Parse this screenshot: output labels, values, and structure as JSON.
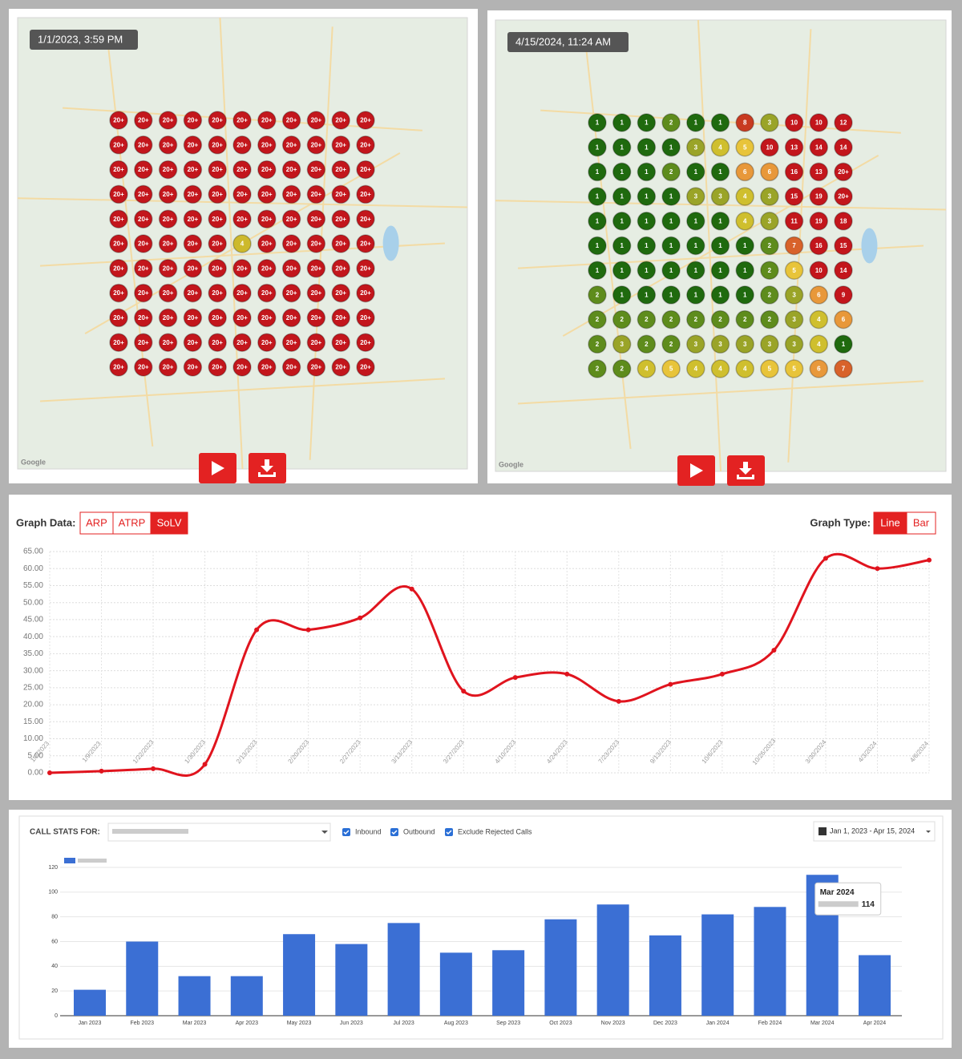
{
  "maps": [
    {
      "timestamp": "1/1/2023, 3:59 PM",
      "attribution": "Google",
      "label_colors": {
        "20+": "#c3161c",
        "4": "#cdb92c"
      },
      "grid": [
        [
          "20+",
          "20+",
          "20+",
          "20+",
          "20+",
          "20+",
          "20+",
          "20+",
          "20+",
          "20+",
          "20+"
        ],
        [
          "20+",
          "20+",
          "20+",
          "20+",
          "20+",
          "20+",
          "20+",
          "20+",
          "20+",
          "20+",
          "20+"
        ],
        [
          "20+",
          "20+",
          "20+",
          "20+",
          "20+",
          "20+",
          "20+",
          "20+",
          "20+",
          "20+",
          "20+"
        ],
        [
          "20+",
          "20+",
          "20+",
          "20+",
          "20+",
          "20+",
          "20+",
          "20+",
          "20+",
          "20+",
          "20+"
        ],
        [
          "20+",
          "20+",
          "20+",
          "20+",
          "20+",
          "20+",
          "20+",
          "20+",
          "20+",
          "20+",
          "20+"
        ],
        [
          "20+",
          "20+",
          "20+",
          "20+",
          "20+",
          "4",
          "20+",
          "20+",
          "20+",
          "20+",
          "20+"
        ],
        [
          "20+",
          "20+",
          "20+",
          "20+",
          "20+",
          "20+",
          "20+",
          "20+",
          "20+",
          "20+",
          "20+"
        ],
        [
          "20+",
          "20+",
          "20+",
          "20+",
          "20+",
          "20+",
          "20+",
          "20+",
          "20+",
          "20+",
          "20+"
        ],
        [
          "20+",
          "20+",
          "20+",
          "20+",
          "20+",
          "20+",
          "20+",
          "20+",
          "20+",
          "20+",
          "20+"
        ],
        [
          "20+",
          "20+",
          "20+",
          "20+",
          "20+",
          "20+",
          "20+",
          "20+",
          "20+",
          "20+",
          "20+"
        ],
        [
          "20+",
          "20+",
          "20+",
          "20+",
          "20+",
          "20+",
          "20+",
          "20+",
          "20+",
          "20+",
          "20+"
        ]
      ]
    },
    {
      "timestamp": "4/15/2024, 11:24 AM",
      "attribution": "Google",
      "label_colors": {
        "1": "#1f6a0e",
        "2": "#5e8c1c",
        "3": "#9aa428",
        "4": "#cfbf2e",
        "5": "#e8c43a",
        "6": "#e8983a",
        "7": "#d8622a",
        "8": "#c83a20",
        "9": "#c3161c",
        "10": "#c3161c",
        "11": "#c3161c",
        "12": "#c3161c",
        "13": "#c3161c",
        "14": "#c3161c",
        "15": "#c3161c",
        "16": "#c3161c",
        "18": "#c3161c",
        "19": "#c3161c",
        "20+": "#c3161c"
      },
      "grid": [
        [
          "1",
          "1",
          "1",
          "2",
          "1",
          "1",
          "8",
          "3",
          "10",
          "10",
          "12"
        ],
        [
          "1",
          "1",
          "1",
          "1",
          "3",
          "4",
          "5",
          "10",
          "13",
          "14",
          "14"
        ],
        [
          "1",
          "1",
          "1",
          "2",
          "1",
          "1",
          "6",
          "6",
          "16",
          "13",
          "20+"
        ],
        [
          "1",
          "1",
          "1",
          "1",
          "3",
          "3",
          "4",
          "3",
          "15",
          "19",
          "20+"
        ],
        [
          "1",
          "1",
          "1",
          "1",
          "1",
          "1",
          "4",
          "3",
          "11",
          "19",
          "18"
        ],
        [
          "1",
          "1",
          "1",
          "1",
          "1",
          "1",
          "1",
          "2",
          "7",
          "16",
          "15"
        ],
        [
          "1",
          "1",
          "1",
          "1",
          "1",
          "1",
          "1",
          "2",
          "5",
          "10",
          "14"
        ],
        [
          "2",
          "1",
          "1",
          "1",
          "1",
          "1",
          "1",
          "2",
          "3",
          "6",
          "9"
        ],
        [
          "2",
          "2",
          "2",
          "2",
          "2",
          "2",
          "2",
          "2",
          "3",
          "4",
          "6"
        ],
        [
          "2",
          "3",
          "2",
          "2",
          "3",
          "3",
          "3",
          "3",
          "3",
          "4",
          "1"
        ],
        [
          "2",
          "2",
          "4",
          "5",
          "4",
          "4",
          "4",
          "5",
          "5",
          "6",
          "7"
        ]
      ]
    }
  ],
  "chart_data": [
    {
      "type": "line",
      "graph_data_label": "Graph Data:",
      "graph_data_options": [
        "ARP",
        "ATRP",
        "SoLV"
      ],
      "graph_data_selected": 2,
      "graph_type_label": "Graph Type:",
      "graph_type_options": [
        "Line",
        "Bar"
      ],
      "graph_type_selected": 0,
      "categories": [
        "1/2/2023",
        "1/9/2023",
        "1/22/2023",
        "1/30/2023",
        "2/13/2023",
        "2/20/2023",
        "2/27/2023",
        "3/13/2023",
        "3/27/2023",
        "4/10/2023",
        "4/24/2023",
        "7/23/2023",
        "9/13/2023",
        "10/6/2023",
        "10/26/2023",
        "3/30/2024",
        "4/3/2024",
        "4/6/2024"
      ],
      "values": [
        0,
        0.5,
        1.2,
        2.5,
        42,
        42,
        45.5,
        54,
        24,
        28,
        29,
        21,
        26,
        29,
        36,
        63,
        60,
        62.5
      ],
      "color": "#e0141e",
      "ylim": [
        0,
        65
      ],
      "yticks": [
        {
          "value": 0,
          "label": "0.00"
        },
        {
          "value": 5,
          "label": "5.00"
        },
        {
          "value": 10,
          "label": "10.00"
        },
        {
          "value": 15,
          "label": "15.00"
        },
        {
          "value": 20,
          "label": "20.00"
        },
        {
          "value": 25,
          "label": "25.00"
        },
        {
          "value": 30,
          "label": "30.00"
        },
        {
          "value": 35,
          "label": "35.00"
        },
        {
          "value": 40,
          "label": "40.00"
        },
        {
          "value": 45,
          "label": "45.00"
        },
        {
          "value": 50,
          "label": "50.00"
        },
        {
          "value": 55,
          "label": "55.00"
        },
        {
          "value": 60,
          "label": "60.00"
        },
        {
          "value": 65,
          "label": "65.00"
        }
      ],
      "grid": true
    },
    {
      "type": "bar",
      "header_label": "CALL STATS FOR:",
      "filters": [
        "Inbound",
        "Outbound",
        "Exclude Rejected Calls"
      ],
      "date_range": "Jan 1, 2023 - Apr 15, 2024",
      "categories": [
        "Jan 2023",
        "Feb 2023",
        "Mar 2023",
        "Apr 2023",
        "May 2023",
        "Jun 2023",
        "Jul 2023",
        "Aug 2023",
        "Sep 2023",
        "Oct 2023",
        "Nov 2023",
        "Dec 2023",
        "Jan 2024",
        "Feb 2024",
        "Mar 2024",
        "Apr 2024"
      ],
      "values": [
        21,
        60,
        32,
        32,
        66,
        58,
        75,
        51,
        53,
        78,
        90,
        65,
        82,
        88,
        114,
        49
      ],
      "color": "#3b6fd4",
      "ylim": [
        0,
        120
      ],
      "yticks": [
        0,
        20,
        40,
        60,
        80,
        100,
        120
      ],
      "grid": true,
      "tooltip_index": 14
    }
  ]
}
